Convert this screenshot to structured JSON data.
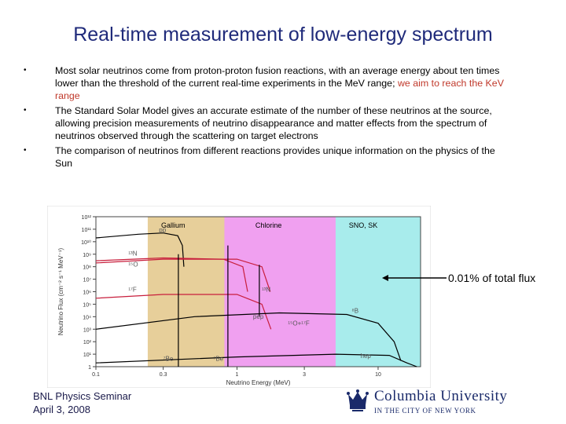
{
  "slide": {
    "title": "Real-time measurement of low-energy spectrum",
    "bullets": [
      {
        "text": "Most solar neutrinos come from proton-proton fusion reactions, with an average energy about ten times lower than the threshold of the current real-time experiments in the MeV range;  ",
        "highlight": "we aim to reach the KeV range"
      },
      {
        "text": "The Standard Solar Model gives an accurate estimate of the number of these neutrinos at the source, allowing precision measurements of neutrino disappearance and matter effects from the spectrum of neutrinos observed through the scattering on target electrons",
        "highlight": ""
      },
      {
        "text": "The comparison of neutrinos from different reactions provides unique information on the physics of the Sun",
        "highlight": ""
      }
    ],
    "bullet_glyph": "•",
    "annotation": "0.01% of total flux",
    "footer": {
      "line1": "BNL Physics Seminar",
      "line2": "April 3, 2008"
    },
    "logo": {
      "name": "Columbia University",
      "tagline": "IN THE CITY OF NEW YORK",
      "icon": "crown-icon"
    }
  },
  "chart_data": {
    "type": "line",
    "x_scale": "log",
    "y_scale": "log",
    "xlim": [
      0.1,
      20
    ],
    "ylim": [
      1,
      1000000000000.0
    ],
    "xlabel": "Neutrino Energy (MeV)",
    "ylabel": "Neutrino Flux (cm⁻² s⁻¹ MeV⁻¹)",
    "x_ticks": [
      "0.1",
      "0.3",
      "1",
      "3",
      "10"
    ],
    "y_ticks": [
      "10¹²",
      "10¹¹",
      "10¹⁰",
      "10⁹",
      "10⁸",
      "10⁷",
      "10⁶",
      "10⁵",
      "10⁴",
      "10³",
      "10²",
      "10¹",
      "1"
    ],
    "regions": [
      {
        "label": "Gallium",
        "x": [
          0.233,
          20
        ],
        "color": "#e7cf9a"
      },
      {
        "label": "Chlorine",
        "x": [
          0.814,
          20
        ],
        "color": "#f0a0f0"
      },
      {
        "label": "SNO, SK",
        "x": [
          5,
          20
        ],
        "color": "#a8ecec"
      }
    ],
    "series": [
      {
        "name": "pp",
        "color": "#000000",
        "points": [
          [
            0.1,
            20000000000.0
          ],
          [
            0.2,
            40000000000.0
          ],
          [
            0.3,
            50000000000.0
          ],
          [
            0.38,
            30000000000.0
          ],
          [
            0.41,
            5000000000.0
          ],
          [
            0.42,
            100000000.0
          ]
        ]
      },
      {
        "name": "13N",
        "color": "#c81e3c",
        "points": [
          [
            0.1,
            300000000.0
          ],
          [
            0.3,
            500000000.0
          ],
          [
            0.8,
            400000000.0
          ],
          [
            1.1,
            100000000.0
          ],
          [
            1.19,
            1000000.0
          ]
        ]
      },
      {
        "name": "15O",
        "color": "#c81e3c",
        "points": [
          [
            0.1,
            200000000.0
          ],
          [
            0.3,
            400000000.0
          ],
          [
            1,
            400000000.0
          ],
          [
            1.5,
            100000000.0
          ],
          [
            1.72,
            1000000.0
          ]
        ]
      },
      {
        "name": "17F",
        "color": "#c81e3c",
        "points": [
          [
            0.1,
            300000.0
          ],
          [
            0.3,
            600000.0
          ],
          [
            1,
            600000.0
          ],
          [
            1.5,
            100000.0
          ],
          [
            1.74,
            1000.0
          ]
        ]
      },
      {
        "name": "8B",
        "color": "#000000",
        "points": [
          [
            0.1,
            1000.0
          ],
          [
            0.5,
            10000.0
          ],
          [
            2,
            20000.0
          ],
          [
            6,
            15000.0
          ],
          [
            10,
            3000.0
          ],
          [
            13,
            100.0
          ],
          [
            14.5,
            3
          ]
        ]
      },
      {
        "name": "hep",
        "color": "#000000",
        "points": [
          [
            0.1,
            2
          ],
          [
            1,
            6
          ],
          [
            5,
            10
          ],
          [
            12,
            8
          ],
          [
            16,
            2
          ],
          [
            18.8,
            1
          ]
        ]
      },
      {
        "name": "pep",
        "color": "#000000",
        "points": [
          [
            1.44,
            10000.0
          ],
          [
            1.44,
            140000000.0
          ]
        ]
      },
      {
        "name": "7Be-1",
        "color": "#000000",
        "points": [
          [
            0.384,
            1
          ],
          [
            0.384,
            1000000000.0
          ]
        ]
      },
      {
        "name": "7Be-2",
        "color": "#000000",
        "points": [
          [
            0.862,
            1
          ],
          [
            0.862,
            5000000000.0
          ]
        ]
      }
    ],
    "annotations": [
      {
        "text": "pp",
        "x": 0.28,
        "y": 60000000000.0
      },
      {
        "text": "¹³N",
        "x": 0.17,
        "y": 800000000.0
      },
      {
        "text": "¹⁵O",
        "x": 0.17,
        "y": 100000000.0
      },
      {
        "text": "¹⁷F",
        "x": 0.17,
        "y": 1000000.0
      },
      {
        "text": "¹³N",
        "x": 1.5,
        "y": 1000000.0
      },
      {
        "text": "¹⁵O+¹⁷F",
        "x": 2.3,
        "y": 2000.0
      },
      {
        "text": "⁸B",
        "x": 6.5,
        "y": 20000.0
      },
      {
        "text": "pep",
        "x": 1.3,
        "y": 7000.0
      },
      {
        "text": "hep",
        "x": 7.5,
        "y": 5
      },
      {
        "text": "⁷Be",
        "x": 0.3,
        "y": 3
      },
      {
        "text": "⁷Be",
        "x": 0.68,
        "y": 3
      }
    ]
  }
}
